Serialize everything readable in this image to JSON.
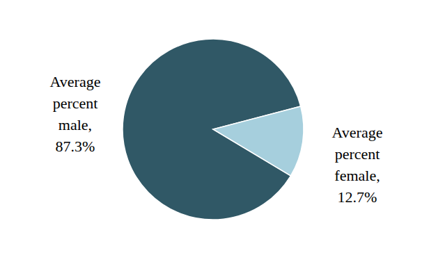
{
  "chart_data": {
    "type": "pie",
    "categories": [
      "Average percent male,",
      "Average percent female,"
    ],
    "values": [
      87.3,
      12.7
    ],
    "value_labels": [
      "87.3%",
      "12.7%"
    ],
    "colors": [
      "#305866",
      "#a6cfdd"
    ],
    "data_labels": true
  }
}
